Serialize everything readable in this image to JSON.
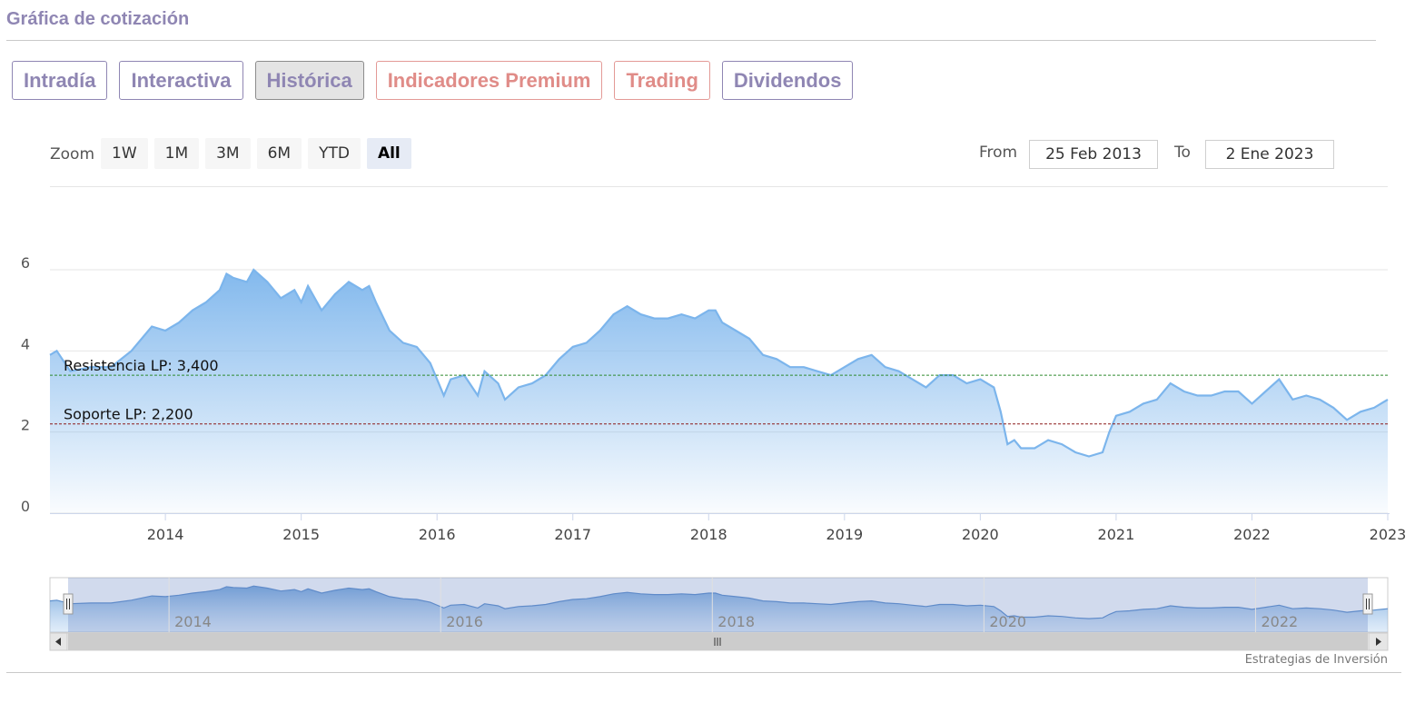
{
  "header": {
    "title": "Gráfica de cotización"
  },
  "tabs": [
    {
      "label": "Intradía",
      "kind": "normal",
      "active": false
    },
    {
      "label": "Interactiva",
      "kind": "normal",
      "active": false
    },
    {
      "label": "Histórica",
      "kind": "normal",
      "active": true
    },
    {
      "label": "Indicadores Premium",
      "kind": "premium",
      "active": false
    },
    {
      "label": "Trading",
      "kind": "premium",
      "active": false
    },
    {
      "label": "Dividendos",
      "kind": "normal",
      "active": false
    }
  ],
  "zoom": {
    "label": "Zoom",
    "buttons": [
      "1W",
      "1M",
      "3M",
      "6M",
      "YTD",
      "All"
    ],
    "active": "All"
  },
  "range": {
    "from_label": "From",
    "from_value": "25 Feb 2013",
    "to_label": "To",
    "to_value": "2 Ene 2023"
  },
  "credit": "Estrategias de Inversión",
  "colors": {
    "accent": "#8f86b3",
    "premium": "#e08c88",
    "line": "#7cb5ec",
    "resistance": "#2e8b2e",
    "support": "#8b1a1a"
  },
  "chart_data": {
    "type": "area",
    "x_ticks": [
      "2014",
      "2015",
      "2016",
      "2017",
      "2018",
      "2019",
      "2020",
      "2021",
      "2022",
      "2023"
    ],
    "y_ticks": [
      "0",
      "2",
      "4",
      "6"
    ],
    "ylim": [
      0,
      6
    ],
    "xlim": [
      2013.15,
      2023.0
    ],
    "grid": true,
    "series": [
      {
        "x": [
          2013.15,
          2013.2,
          2013.3,
          2013.45,
          2013.6,
          2013.75,
          2013.9,
          2014.0,
          2014.1,
          2014.2,
          2014.3,
          2014.4,
          2014.45,
          2014.5,
          2014.6,
          2014.65,
          2014.75,
          2014.85,
          2014.95,
          2015.0,
          2015.05,
          2015.15,
          2015.25,
          2015.35,
          2015.45,
          2015.5,
          2015.55,
          2015.65,
          2015.75,
          2015.85,
          2015.95,
          2016.05,
          2016.1,
          2016.2,
          2016.3,
          2016.35,
          2016.45,
          2016.5,
          2016.6,
          2016.7,
          2016.8,
          2016.9,
          2017.0,
          2017.1,
          2017.2,
          2017.3,
          2017.4,
          2017.5,
          2017.6,
          2017.7,
          2017.8,
          2017.9,
          2018.0,
          2018.05,
          2018.1,
          2018.2,
          2018.3,
          2018.4,
          2018.5,
          2018.6,
          2018.7,
          2018.8,
          2018.9,
          2019.0,
          2019.1,
          2019.2,
          2019.3,
          2019.4,
          2019.5,
          2019.6,
          2019.7,
          2019.8,
          2019.9,
          2020.0,
          2020.1,
          2020.15,
          2020.2,
          2020.25,
          2020.3,
          2020.4,
          2020.5,
          2020.6,
          2020.7,
          2020.8,
          2020.9,
          2020.95,
          2021.0,
          2021.1,
          2021.2,
          2021.3,
          2021.4,
          2021.5,
          2021.6,
          2021.7,
          2021.8,
          2021.9,
          2022.0,
          2022.1,
          2022.2,
          2022.3,
          2022.4,
          2022.5,
          2022.6,
          2022.7,
          2022.8,
          2022.9,
          2023.0
        ],
        "y": [
          3.9,
          4.0,
          3.5,
          3.6,
          3.6,
          4.0,
          4.6,
          4.5,
          4.7,
          5.0,
          5.2,
          5.5,
          5.9,
          5.8,
          5.7,
          6.0,
          5.7,
          5.3,
          5.5,
          5.2,
          5.6,
          5.0,
          5.4,
          5.7,
          5.5,
          5.6,
          5.2,
          4.5,
          4.2,
          4.1,
          3.7,
          2.9,
          3.3,
          3.4,
          2.9,
          3.5,
          3.2,
          2.8,
          3.1,
          3.2,
          3.4,
          3.8,
          4.1,
          4.2,
          4.5,
          4.9,
          5.1,
          4.9,
          4.8,
          4.8,
          4.9,
          4.8,
          5.0,
          5.0,
          4.7,
          4.5,
          4.3,
          3.9,
          3.8,
          3.6,
          3.6,
          3.5,
          3.4,
          3.6,
          3.8,
          3.9,
          3.6,
          3.5,
          3.3,
          3.1,
          3.4,
          3.4,
          3.2,
          3.3,
          3.1,
          2.5,
          1.7,
          1.8,
          1.6,
          1.6,
          1.8,
          1.7,
          1.5,
          1.4,
          1.5,
          2.0,
          2.4,
          2.5,
          2.7,
          2.8,
          3.2,
          3.0,
          2.9,
          2.9,
          3.0,
          3.0,
          2.7,
          3.0,
          3.3,
          2.8,
          2.9,
          2.8,
          2.6,
          2.3,
          2.5,
          2.6,
          2.8
        ]
      }
    ],
    "annotations": [
      {
        "label": "Resistencia LP: 3,400",
        "y": 3.4,
        "color": "#2e8b2e"
      },
      {
        "label": "Soporte LP: 2,200",
        "y": 2.2,
        "color": "#8b1a1a"
      }
    ],
    "navigator": {
      "x_ticks": [
        "2014",
        "2016",
        "2018",
        "2020",
        "2022"
      ]
    }
  }
}
